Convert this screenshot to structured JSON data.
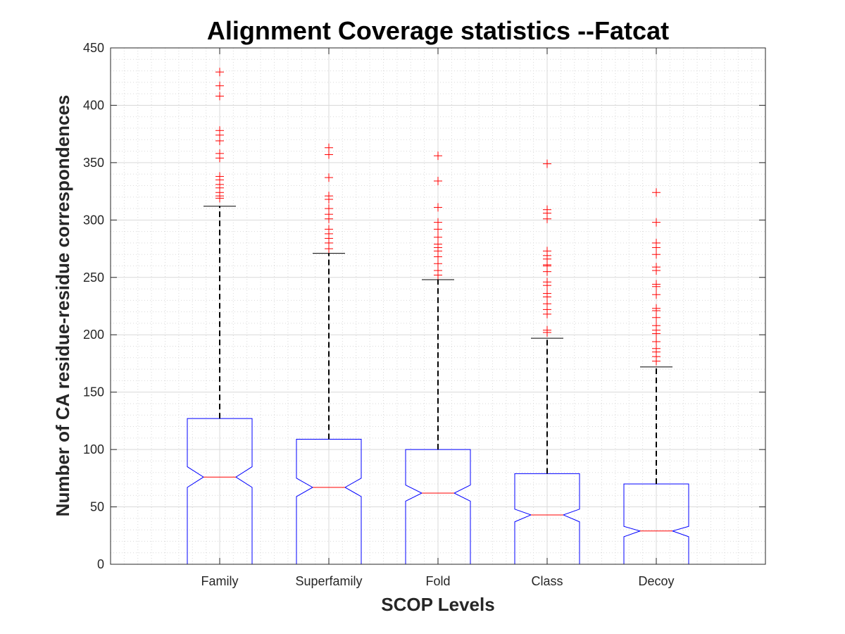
{
  "chart_data": {
    "type": "box",
    "title": "Alignment Coverage statistics --Fatcat",
    "xlabel": "SCOP Levels",
    "ylabel": "Number of CA residue-residue correspondences",
    "ylim": [
      0,
      450
    ],
    "yticks": [
      0,
      50,
      100,
      150,
      200,
      250,
      300,
      350,
      400,
      450
    ],
    "grid": "major-and-minor",
    "notched": true,
    "categories": [
      "Family",
      "Superfamily",
      "Fold",
      "Class",
      "Decoy"
    ],
    "boxes": [
      {
        "category": "Family",
        "min": 0,
        "q1": 0,
        "median": 76,
        "q3": 127,
        "whisker_high": 312,
        "notch_low": 67,
        "notch_high": 85,
        "outliers": [
          319,
          321,
          324,
          328,
          331,
          335,
          338,
          354,
          358,
          369,
          374,
          378,
          408,
          417,
          429
        ]
      },
      {
        "category": "Superfamily",
        "min": 0,
        "q1": 0,
        "median": 67,
        "q3": 109,
        "whisker_high": 271,
        "notch_low": 59,
        "notch_high": 75,
        "outliers": [
          275,
          280,
          284,
          288,
          292,
          301,
          305,
          310,
          318,
          321,
          337,
          357,
          363
        ]
      },
      {
        "category": "Fold",
        "min": 0,
        "q1": 0,
        "median": 62,
        "q3": 100,
        "whisker_high": 248,
        "notch_low": 55,
        "notch_high": 69,
        "outliers": [
          252,
          256,
          262,
          268,
          273,
          276,
          279,
          285,
          292,
          298,
          311,
          334,
          356
        ]
      },
      {
        "category": "Class",
        "min": 0,
        "q1": 0,
        "median": 43,
        "q3": 79,
        "whisker_high": 197,
        "notch_low": 37,
        "notch_high": 48,
        "outliers": [
          202,
          204,
          218,
          222,
          227,
          233,
          236,
          243,
          246,
          255,
          260,
          261,
          266,
          269,
          273,
          301,
          306,
          309,
          349
        ]
      },
      {
        "category": "Decoy",
        "min": 0,
        "q1": 0,
        "median": 29,
        "q3": 70,
        "whisker_high": 172,
        "notch_low": 24,
        "notch_high": 33,
        "outliers": [
          177,
          181,
          185,
          188,
          194,
          201,
          204,
          208,
          215,
          221,
          223,
          235,
          242,
          244,
          256,
          259,
          270,
          276,
          280,
          298,
          324
        ]
      }
    ],
    "colors": {
      "box": "#0000ff",
      "median": "#ff0000",
      "whisker": "#000000",
      "outlier": "#ff0000",
      "grid": "#d9d9d9"
    }
  }
}
